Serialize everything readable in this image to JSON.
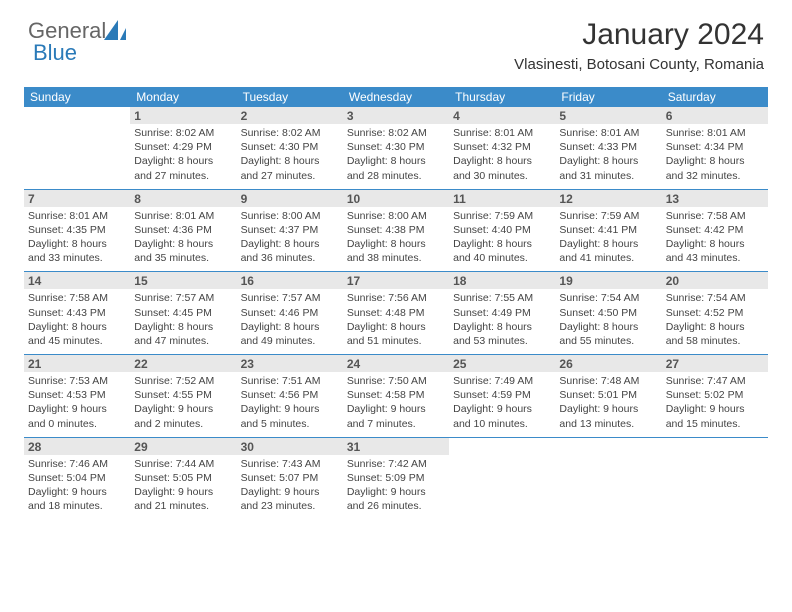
{
  "brand": {
    "word1": "General",
    "word2": "Blue"
  },
  "title": "January 2024",
  "location": "Vlasinesti, Botosani County, Romania",
  "colors": {
    "header_bg": "#3b8bc9",
    "header_text": "#ffffff",
    "daynum_bg": "#e8e8e8",
    "rule": "#3b8bc9",
    "brand_blue": "#2a7ab8"
  },
  "weekday_labels": [
    "Sunday",
    "Monday",
    "Tuesday",
    "Wednesday",
    "Thursday",
    "Friday",
    "Saturday"
  ],
  "weeks": [
    [
      {
        "n": "",
        "empty": true
      },
      {
        "n": "1",
        "sunrise": "Sunrise: 8:02 AM",
        "sunset": "Sunset: 4:29 PM",
        "dl1": "Daylight: 8 hours",
        "dl2": "and 27 minutes."
      },
      {
        "n": "2",
        "sunrise": "Sunrise: 8:02 AM",
        "sunset": "Sunset: 4:30 PM",
        "dl1": "Daylight: 8 hours",
        "dl2": "and 27 minutes."
      },
      {
        "n": "3",
        "sunrise": "Sunrise: 8:02 AM",
        "sunset": "Sunset: 4:30 PM",
        "dl1": "Daylight: 8 hours",
        "dl2": "and 28 minutes."
      },
      {
        "n": "4",
        "sunrise": "Sunrise: 8:01 AM",
        "sunset": "Sunset: 4:32 PM",
        "dl1": "Daylight: 8 hours",
        "dl2": "and 30 minutes."
      },
      {
        "n": "5",
        "sunrise": "Sunrise: 8:01 AM",
        "sunset": "Sunset: 4:33 PM",
        "dl1": "Daylight: 8 hours",
        "dl2": "and 31 minutes."
      },
      {
        "n": "6",
        "sunrise": "Sunrise: 8:01 AM",
        "sunset": "Sunset: 4:34 PM",
        "dl1": "Daylight: 8 hours",
        "dl2": "and 32 minutes."
      }
    ],
    [
      {
        "n": "7",
        "sunrise": "Sunrise: 8:01 AM",
        "sunset": "Sunset: 4:35 PM",
        "dl1": "Daylight: 8 hours",
        "dl2": "and 33 minutes."
      },
      {
        "n": "8",
        "sunrise": "Sunrise: 8:01 AM",
        "sunset": "Sunset: 4:36 PM",
        "dl1": "Daylight: 8 hours",
        "dl2": "and 35 minutes."
      },
      {
        "n": "9",
        "sunrise": "Sunrise: 8:00 AM",
        "sunset": "Sunset: 4:37 PM",
        "dl1": "Daylight: 8 hours",
        "dl2": "and 36 minutes."
      },
      {
        "n": "10",
        "sunrise": "Sunrise: 8:00 AM",
        "sunset": "Sunset: 4:38 PM",
        "dl1": "Daylight: 8 hours",
        "dl2": "and 38 minutes."
      },
      {
        "n": "11",
        "sunrise": "Sunrise: 7:59 AM",
        "sunset": "Sunset: 4:40 PM",
        "dl1": "Daylight: 8 hours",
        "dl2": "and 40 minutes."
      },
      {
        "n": "12",
        "sunrise": "Sunrise: 7:59 AM",
        "sunset": "Sunset: 4:41 PM",
        "dl1": "Daylight: 8 hours",
        "dl2": "and 41 minutes."
      },
      {
        "n": "13",
        "sunrise": "Sunrise: 7:58 AM",
        "sunset": "Sunset: 4:42 PM",
        "dl1": "Daylight: 8 hours",
        "dl2": "and 43 minutes."
      }
    ],
    [
      {
        "n": "14",
        "sunrise": "Sunrise: 7:58 AM",
        "sunset": "Sunset: 4:43 PM",
        "dl1": "Daylight: 8 hours",
        "dl2": "and 45 minutes."
      },
      {
        "n": "15",
        "sunrise": "Sunrise: 7:57 AM",
        "sunset": "Sunset: 4:45 PM",
        "dl1": "Daylight: 8 hours",
        "dl2": "and 47 minutes."
      },
      {
        "n": "16",
        "sunrise": "Sunrise: 7:57 AM",
        "sunset": "Sunset: 4:46 PM",
        "dl1": "Daylight: 8 hours",
        "dl2": "and 49 minutes."
      },
      {
        "n": "17",
        "sunrise": "Sunrise: 7:56 AM",
        "sunset": "Sunset: 4:48 PM",
        "dl1": "Daylight: 8 hours",
        "dl2": "and 51 minutes."
      },
      {
        "n": "18",
        "sunrise": "Sunrise: 7:55 AM",
        "sunset": "Sunset: 4:49 PM",
        "dl1": "Daylight: 8 hours",
        "dl2": "and 53 minutes."
      },
      {
        "n": "19",
        "sunrise": "Sunrise: 7:54 AM",
        "sunset": "Sunset: 4:50 PM",
        "dl1": "Daylight: 8 hours",
        "dl2": "and 55 minutes."
      },
      {
        "n": "20",
        "sunrise": "Sunrise: 7:54 AM",
        "sunset": "Sunset: 4:52 PM",
        "dl1": "Daylight: 8 hours",
        "dl2": "and 58 minutes."
      }
    ],
    [
      {
        "n": "21",
        "sunrise": "Sunrise: 7:53 AM",
        "sunset": "Sunset: 4:53 PM",
        "dl1": "Daylight: 9 hours",
        "dl2": "and 0 minutes."
      },
      {
        "n": "22",
        "sunrise": "Sunrise: 7:52 AM",
        "sunset": "Sunset: 4:55 PM",
        "dl1": "Daylight: 9 hours",
        "dl2": "and 2 minutes."
      },
      {
        "n": "23",
        "sunrise": "Sunrise: 7:51 AM",
        "sunset": "Sunset: 4:56 PM",
        "dl1": "Daylight: 9 hours",
        "dl2": "and 5 minutes."
      },
      {
        "n": "24",
        "sunrise": "Sunrise: 7:50 AM",
        "sunset": "Sunset: 4:58 PM",
        "dl1": "Daylight: 9 hours",
        "dl2": "and 7 minutes."
      },
      {
        "n": "25",
        "sunrise": "Sunrise: 7:49 AM",
        "sunset": "Sunset: 4:59 PM",
        "dl1": "Daylight: 9 hours",
        "dl2": "and 10 minutes."
      },
      {
        "n": "26",
        "sunrise": "Sunrise: 7:48 AM",
        "sunset": "Sunset: 5:01 PM",
        "dl1": "Daylight: 9 hours",
        "dl2": "and 13 minutes."
      },
      {
        "n": "27",
        "sunrise": "Sunrise: 7:47 AM",
        "sunset": "Sunset: 5:02 PM",
        "dl1": "Daylight: 9 hours",
        "dl2": "and 15 minutes."
      }
    ],
    [
      {
        "n": "28",
        "sunrise": "Sunrise: 7:46 AM",
        "sunset": "Sunset: 5:04 PM",
        "dl1": "Daylight: 9 hours",
        "dl2": "and 18 minutes."
      },
      {
        "n": "29",
        "sunrise": "Sunrise: 7:44 AM",
        "sunset": "Sunset: 5:05 PM",
        "dl1": "Daylight: 9 hours",
        "dl2": "and 21 minutes."
      },
      {
        "n": "30",
        "sunrise": "Sunrise: 7:43 AM",
        "sunset": "Sunset: 5:07 PM",
        "dl1": "Daylight: 9 hours",
        "dl2": "and 23 minutes."
      },
      {
        "n": "31",
        "sunrise": "Sunrise: 7:42 AM",
        "sunset": "Sunset: 5:09 PM",
        "dl1": "Daylight: 9 hours",
        "dl2": "and 26 minutes."
      },
      {
        "n": "",
        "empty": true
      },
      {
        "n": "",
        "empty": true
      },
      {
        "n": "",
        "empty": true
      }
    ]
  ]
}
